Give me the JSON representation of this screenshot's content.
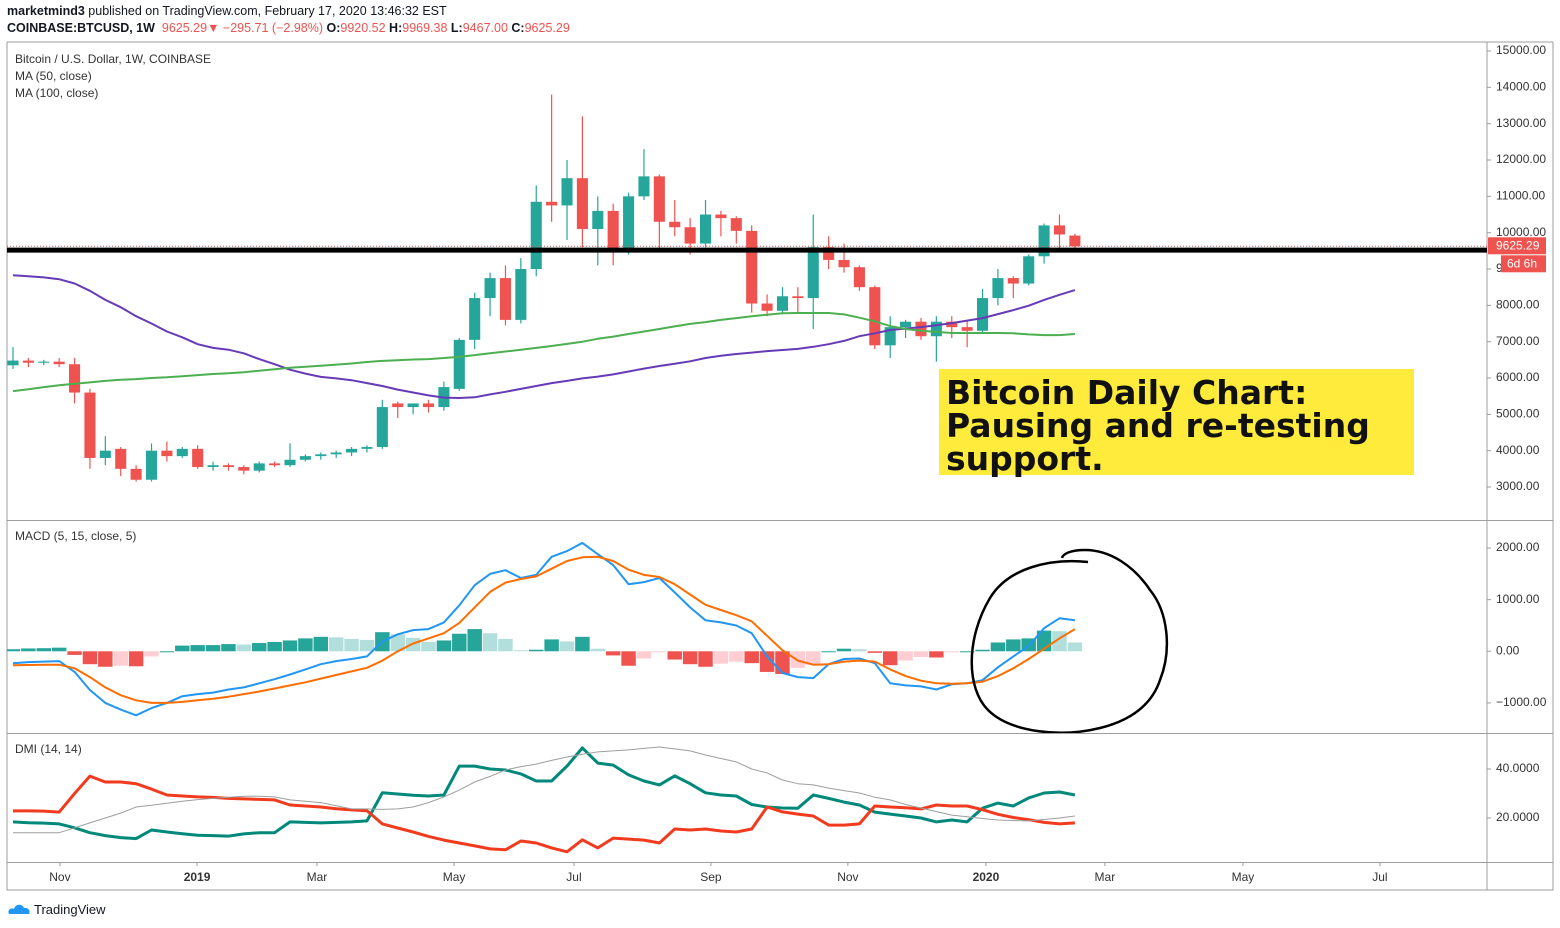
{
  "header": {
    "publisher": "marketmind3",
    "published": "published on TradingView.com, February 17, 2020 13:46:32 EST",
    "symbol": "COINBASE:BTCUSD, 1W",
    "last": "9625.29",
    "arrow": "▼",
    "change": "−295.71 (−2.98%)",
    "ohlc": [
      {
        "label": "O:",
        "value": "9920.52"
      },
      {
        "label": "H:",
        "value": "9969.38"
      },
      {
        "label": "L:",
        "value": "9467.00"
      },
      {
        "label": "C:",
        "value": "9625.29"
      }
    ]
  },
  "chart_data": [
    {
      "type": "candlestick",
      "title": "Bitcoin / U.S. Dollar, 1W, COINBASE",
      "up_color": "#26a69a",
      "down_color": "#ef5350",
      "open": [
        6350,
        6480,
        6420,
        6450,
        6380,
        5600,
        3800,
        4050,
        3500,
        3200,
        4000,
        3850,
        4050,
        3550,
        3600,
        3550,
        3450,
        3650,
        3600,
        3750,
        3850,
        3900,
        3950,
        4050,
        4100,
        5300,
        5200,
        5300,
        5200,
        5700,
        7050,
        8200,
        8750,
        7600,
        9000,
        10850,
        10750,
        11500,
        10100,
        10600,
        9500,
        11000,
        11550,
        10300,
        10150,
        9700,
        10500,
        10400,
        10050,
        8050,
        7850,
        8250,
        8200,
        9600,
        9250,
        9050,
        8500,
        6900,
        7400,
        7550,
        7150,
        7550,
        7400,
        7300,
        8200,
        8750,
        8600,
        9350,
        10200,
        9920.52
      ],
      "high": [
        6850,
        6550,
        6500,
        6550,
        6550,
        5700,
        4400,
        4100,
        3600,
        4200,
        4250,
        4100,
        4150,
        3700,
        3650,
        3600,
        3700,
        3700,
        4200,
        3900,
        3950,
        4000,
        4100,
        4150,
        5400,
        5350,
        5300,
        5400,
        5900,
        7100,
        8350,
        8900,
        9100,
        9300,
        11300,
        13800,
        12000,
        13200,
        11000,
        10800,
        11100,
        12300,
        11600,
        10900,
        10400,
        10900,
        10600,
        10450,
        10200,
        8300,
        8500,
        8500,
        10500,
        9900,
        9700,
        9100,
        8550,
        7700,
        7600,
        7650,
        7700,
        7700,
        7600,
        8450,
        9000,
        8800,
        9400,
        10250,
        10500,
        9969.38
      ],
      "low": [
        6250,
        6300,
        6350,
        6300,
        5300,
        3500,
        3600,
        3300,
        3150,
        3150,
        3700,
        3800,
        3500,
        3450,
        3450,
        3350,
        3400,
        3550,
        3550,
        3700,
        3750,
        3800,
        3850,
        3950,
        4050,
        4900,
        5000,
        5050,
        5100,
        5650,
        6800,
        7700,
        7450,
        7500,
        8800,
        10300,
        9800,
        9600,
        9100,
        9100,
        9400,
        10900,
        9500,
        9900,
        9400,
        9600,
        9900,
        9700,
        7800,
        7700,
        7750,
        7800,
        7350,
        9000,
        8900,
        8400,
        6800,
        6550,
        7100,
        7050,
        6450,
        7100,
        6850,
        7250,
        8000,
        8200,
        8550,
        9150,
        9550,
        9467
      ],
      "close": [
        6480,
        6420,
        6450,
        6380,
        5600,
        3800,
        4000,
        3500,
        3200,
        4000,
        3850,
        4050,
        3550,
        3600,
        3550,
        3450,
        3650,
        3600,
        3750,
        3850,
        3900,
        3950,
        4050,
        4100,
        5200,
        5200,
        5300,
        5200,
        5750,
        7050,
        8200,
        8750,
        7600,
        9000,
        10850,
        10750,
        11500,
        10100,
        10600,
        9500,
        11000,
        11550,
        10300,
        10150,
        9700,
        10500,
        10400,
        10050,
        8050,
        7850,
        8250,
        8200,
        9600,
        9250,
        9050,
        8500,
        6900,
        7400,
        7550,
        7150,
        7550,
        7400,
        7300,
        8200,
        8750,
        8600,
        9350,
        10200,
        9950,
        9625.29
      ],
      "series": [
        {
          "name": "MA (50, close)",
          "color": "#673ab7",
          "values": [
            8830,
            8800,
            8770,
            8720,
            8600,
            8400,
            8150,
            7950,
            7700,
            7500,
            7280,
            7120,
            6930,
            6830,
            6780,
            6680,
            6520,
            6380,
            6230,
            6120,
            6030,
            5990,
            5940,
            5860,
            5780,
            5680,
            5600,
            5520,
            5460,
            5450,
            5470,
            5550,
            5620,
            5700,
            5780,
            5860,
            5920,
            5990,
            6040,
            6100,
            6180,
            6260,
            6330,
            6390,
            6460,
            6550,
            6610,
            6660,
            6700,
            6740,
            6770,
            6800,
            6860,
            6930,
            7020,
            7150,
            7230,
            7320,
            7360,
            7400,
            7450,
            7510,
            7580,
            7650,
            7760,
            7870,
            7990,
            8150,
            8290,
            8420
          ]
        },
        {
          "name": "MA (100, close)",
          "color": "#4caf50",
          "values": [
            5640,
            5690,
            5750,
            5800,
            5840,
            5880,
            5920,
            5950,
            5970,
            6000,
            6020,
            6050,
            6080,
            6110,
            6130,
            6160,
            6200,
            6240,
            6280,
            6310,
            6340,
            6370,
            6400,
            6440,
            6470,
            6490,
            6510,
            6520,
            6550,
            6580,
            6630,
            6680,
            6730,
            6780,
            6830,
            6880,
            6940,
            7000,
            7080,
            7140,
            7210,
            7280,
            7350,
            7420,
            7490,
            7540,
            7600,
            7650,
            7700,
            7740,
            7780,
            7790,
            7790,
            7790,
            7750,
            7660,
            7560,
            7430,
            7350,
            7300,
            7270,
            7240,
            7240,
            7240,
            7240,
            7230,
            7200,
            7180,
            7180,
            7210
          ]
        }
      ],
      "support_level": 9520,
      "support_color": "#000000",
      "last_price": {
        "value": 9625.29,
        "label": "9625.29"
      },
      "countdown": "6d 6h",
      "ylim": [
        2092,
        15248
      ],
      "yticks": [
        {
          "value": 3000,
          "label": "3000.00"
        },
        {
          "value": 4000,
          "label": "4000.00"
        },
        {
          "value": 5000,
          "label": "5000.00"
        },
        {
          "value": 6000,
          "label": "6000.00"
        },
        {
          "value": 7000,
          "label": "7000.00"
        },
        {
          "value": 8000,
          "label": "8000.00"
        },
        {
          "value": 9000,
          "label": "9000.00"
        },
        {
          "value": 10000,
          "label": "10000.00"
        },
        {
          "value": 11000,
          "label": "11000.00"
        },
        {
          "value": 12000,
          "label": "12000.00"
        },
        {
          "value": 13000,
          "label": "13000.00"
        },
        {
          "value": 14000,
          "label": "14000.00"
        },
        {
          "value": 15000,
          "label": "15000.00"
        }
      ],
      "xlim": [
        -0.39,
        95.78
      ],
      "xticks": [
        {
          "value": 3.05,
          "label": "Nov"
        },
        {
          "value": 11.96,
          "label": "2019"
        },
        {
          "value": 19.75,
          "label": "Mar"
        },
        {
          "value": 28.66,
          "label": "May"
        },
        {
          "value": 36.45,
          "label": "Jul"
        },
        {
          "value": 45.35,
          "label": "Sep"
        },
        {
          "value": 54.25,
          "label": "Nov"
        },
        {
          "value": 63.22,
          "label": "2020"
        },
        {
          "value": 70.95,
          "label": "Mar"
        },
        {
          "value": 79.92,
          "label": "May"
        },
        {
          "value": 88.82,
          "label": "Jul"
        }
      ],
      "annotation": {
        "lines": [
          "Bitcoin Daily Chart:",
          "Pausing and re-testing",
          "support."
        ],
        "color": "#ffeb3b"
      }
    },
    {
      "type": "macd",
      "title": "MACD (5, 15, close, 5)",
      "histogram": [
        40,
        55,
        60,
        70,
        -70,
        -250,
        -300,
        -280,
        -290,
        -100,
        0,
        110,
        120,
        120,
        140,
        130,
        160,
        180,
        210,
        250,
        280,
        270,
        240,
        220,
        370,
        330,
        260,
        180,
        210,
        340,
        430,
        350,
        240,
        20,
        30,
        230,
        190,
        280,
        50,
        -80,
        -280,
        -140,
        -20,
        -160,
        -250,
        -300,
        -240,
        -200,
        -230,
        -400,
        -440,
        -320,
        -260,
        0,
        50,
        40,
        -30,
        -270,
        -180,
        -110,
        -120,
        -10,
        0,
        30,
        170,
        230,
        250,
        400,
        390,
        170
      ],
      "histogram_colors": {
        "rising_up": "#26a69a",
        "falling_up": "#b2dfdb",
        "falling_down": "#ef5350",
        "rising_down": "#ffcdd2"
      },
      "series": [
        {
          "color": "#2196f3",
          "values": [
            -230,
            -210,
            -200,
            -190,
            -400,
            -750,
            -1000,
            -1130,
            -1240,
            -1100,
            -1000,
            -870,
            -830,
            -800,
            -740,
            -700,
            -620,
            -540,
            -450,
            -350,
            -250,
            -190,
            -150,
            -100,
            190,
            330,
            410,
            430,
            560,
            890,
            1280,
            1500,
            1570,
            1420,
            1480,
            1830,
            1940,
            2100,
            1880,
            1670,
            1300,
            1340,
            1420,
            1140,
            850,
            600,
            560,
            500,
            350,
            -100,
            -420,
            -500,
            -520,
            -250,
            -150,
            -140,
            -230,
            -620,
            -660,
            -680,
            -740,
            -640,
            -620,
            -560,
            -310,
            -100,
            100,
            450,
            640,
            600
          ]
        },
        {
          "color": "#ff6d00",
          "values": [
            -270,
            -265,
            -260,
            -260,
            -330,
            -500,
            -700,
            -850,
            -950,
            -1000,
            -1000,
            -980,
            -950,
            -920,
            -880,
            -830,
            -780,
            -720,
            -660,
            -600,
            -530,
            -460,
            -390,
            -320,
            -180,
            0,
            150,
            250,
            350,
            550,
            850,
            1150,
            1330,
            1400,
            1450,
            1600,
            1750,
            1820,
            1830,
            1750,
            1580,
            1480,
            1440,
            1300,
            1100,
            900,
            800,
            700,
            580,
            300,
            20,
            -180,
            -260,
            -250,
            -200,
            -180,
            -200,
            -350,
            -480,
            -570,
            -620,
            -630,
            -620,
            -590,
            -480,
            -330,
            -150,
            50,
            250,
            430
          ]
        }
      ],
      "ylim": [
        -1583,
        2524
      ],
      "yticks": [
        {
          "value": -1000,
          "label": "−1000.00"
        },
        {
          "value": 0,
          "label": "0.00"
        },
        {
          "value": 1000,
          "label": "1000.00"
        },
        {
          "value": 2000,
          "label": "2000.00"
        }
      ]
    },
    {
      "type": "line",
      "title": "DMI (14, 14)",
      "series": [
        {
          "color": "#00897b",
          "width": 3,
          "values": [
            18.4,
            18.1,
            17.9,
            17.6,
            16,
            14,
            12.8,
            12,
            11.6,
            15.1,
            14.3,
            13.6,
            13,
            12.8,
            12.6,
            13.5,
            14,
            14,
            18.4,
            18.2,
            18,
            18.2,
            18.4,
            18.8,
            30.3,
            29.8,
            29.3,
            29,
            29.4,
            41.2,
            41.2,
            40,
            39.6,
            38,
            35.1,
            35.1,
            41.2,
            48.6,
            42.4,
            41.6,
            37.6,
            35.1,
            33.5,
            37.2,
            34,
            30.3,
            29.4,
            29,
            25.5,
            24.5,
            24.1,
            24,
            29.4,
            28,
            26.5,
            25.3,
            22.4,
            21.6,
            20.8,
            20,
            18.4,
            19.2,
            18.4,
            24,
            26.1,
            24.9,
            28.2,
            30.2,
            30.6,
            29.4
          ]
        },
        {
          "color": "#f23b1e",
          "width": 3,
          "values": [
            22.9,
            22.9,
            22.8,
            22.4,
            30,
            37.1,
            34.7,
            34.7,
            34,
            31.8,
            29.4,
            29,
            28.6,
            28.4,
            28,
            27.8,
            27.6,
            27.4,
            25.3,
            24.9,
            24.5,
            23.8,
            23.3,
            23,
            17.6,
            15.9,
            14.3,
            12.5,
            11,
            9.8,
            8.6,
            7.4,
            7,
            10.6,
            9.8,
            7.8,
            6.2,
            11.1,
            7.8,
            11.8,
            11.4,
            11,
            9.8,
            15.5,
            15.1,
            15.5,
            14.7,
            14.3,
            15.5,
            24.5,
            22.5,
            21.6,
            20.8,
            17.1,
            17.1,
            17.6,
            24.9,
            24.5,
            24.2,
            23.7,
            25.3,
            24.9,
            24.9,
            23.4,
            21.5,
            20.2,
            19.3,
            18.2,
            17.6,
            18
          ]
        },
        {
          "color": "#9e9e9e",
          "width": 1,
          "values": [
            14,
            14,
            14,
            14,
            16,
            18,
            20,
            22,
            24.5,
            25.2,
            26,
            26.8,
            27.5,
            28,
            28.5,
            28.9,
            28.9,
            28.6,
            27.4,
            26.8,
            26.3,
            25,
            23.7,
            23.7,
            23.5,
            23.7,
            24.5,
            26.3,
            28.6,
            31.4,
            34.7,
            37,
            39.6,
            41,
            42,
            43.5,
            44.9,
            46,
            47,
            47.4,
            47.8,
            48.4,
            49,
            48.2,
            47.4,
            45.7,
            44.3,
            42.9,
            40,
            38.4,
            35.5,
            34,
            33.5,
            32.2,
            31.2,
            30.2,
            28.5,
            27.4,
            25.5,
            24.1,
            22.6,
            21.2,
            20.5,
            19.8,
            19.2,
            19,
            18.8,
            19.4,
            20,
            20.8
          ]
        }
      ],
      "ylim": [
        2.04,
        54.29
      ],
      "yticks": [
        {
          "value": 20,
          "label": "20.0000"
        },
        {
          "value": 40,
          "label": "40.0000"
        }
      ]
    }
  ],
  "footer": {
    "brand": "TradingView"
  }
}
